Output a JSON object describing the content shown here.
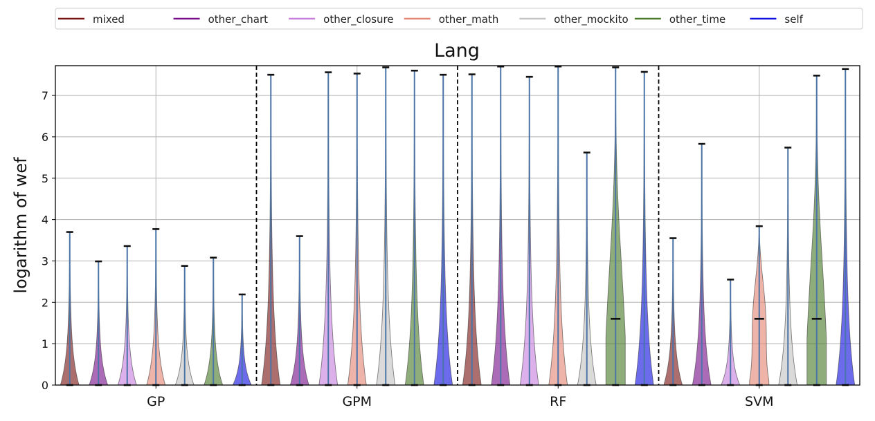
{
  "chart_data": {
    "type": "violin",
    "title": "Lang",
    "ylabel": "logarithm of wef",
    "xlabel": "",
    "ylim": [
      0,
      7.72
    ],
    "yticks": [
      0,
      1,
      2,
      3,
      4,
      5,
      6,
      7
    ],
    "grid": true,
    "legend_position": "top",
    "groups": [
      "GP",
      "GPM",
      "RF",
      "SVM"
    ],
    "series": [
      {
        "name": "mixed",
        "color": "#7b1515",
        "max": [
          3.7,
          7.5,
          7.51,
          3.55
        ],
        "median": [
          0,
          0,
          0,
          0
        ]
      },
      {
        "name": "other_chart",
        "color": "#77108a",
        "max": [
          2.99,
          3.6,
          7.7,
          5.83
        ],
        "median": [
          0,
          0,
          0,
          0
        ]
      },
      {
        "name": "other_closure",
        "color": "#c77fdd",
        "max": [
          3.36,
          7.56,
          7.45,
          2.55
        ],
        "median": [
          0,
          0,
          0,
          0
        ]
      },
      {
        "name": "other_math",
        "color": "#e48575",
        "max": [
          3.77,
          7.53,
          7.7,
          3.84
        ],
        "median": [
          0,
          0,
          0,
          1.6
        ]
      },
      {
        "name": "other_mockito",
        "color": "#c4c4c4",
        "max": [
          2.88,
          7.68,
          5.62,
          5.74
        ],
        "median": [
          0,
          0,
          0,
          0
        ]
      },
      {
        "name": "other_time",
        "color": "#4b7b2a",
        "max": [
          3.08,
          7.6,
          7.68,
          7.48
        ],
        "median": [
          0,
          0,
          1.6,
          1.6
        ]
      },
      {
        "name": "self",
        "color": "#1010e0",
        "max": [
          2.19,
          7.5,
          7.57,
          7.64
        ],
        "median": [
          0,
          0,
          0,
          0
        ]
      }
    ]
  }
}
